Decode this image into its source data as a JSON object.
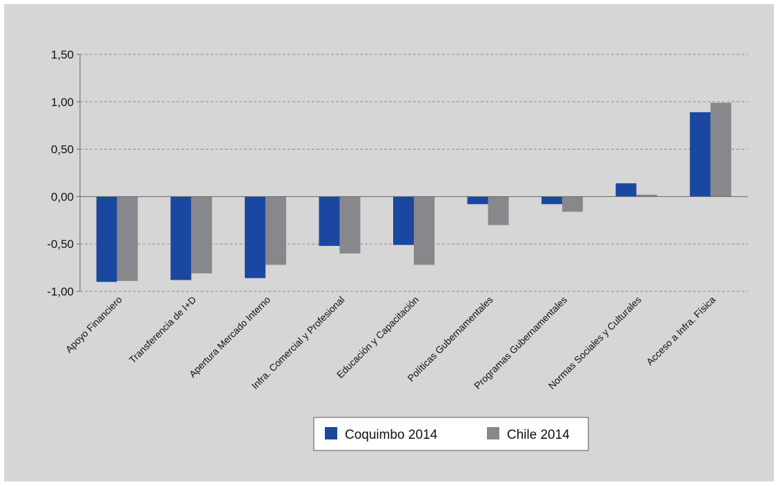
{
  "chart_data": {
    "type": "bar",
    "categories": [
      "Apoyo Financiero",
      "Transferencia de I+D",
      "Apertura Mercado Interno",
      "Infra. Comercial y Profesional",
      "Educación y Capacitación",
      "Políticas Gubernamentales",
      "Programas Gubernamentales",
      "Normas Sociales y Culturales",
      "Acceso a Infra. Física"
    ],
    "series": [
      {
        "name": "Coquimbo 2014",
        "color": "#1a47a0",
        "values": [
          -0.9,
          -0.88,
          -0.86,
          -0.52,
          -0.51,
          -0.08,
          -0.08,
          0.14,
          0.89
        ]
      },
      {
        "name": "Chile 2014",
        "color": "#87888b",
        "values": [
          -0.89,
          -0.81,
          -0.72,
          -0.6,
          -0.72,
          -0.3,
          -0.16,
          0.02,
          0.99
        ]
      }
    ],
    "yticks": [
      "1,50",
      "1,00",
      "0,50",
      "0,00",
      "-0,50",
      "-1,00"
    ],
    "ytick_values": [
      1.5,
      1.0,
      0.5,
      0.0,
      -0.5,
      -1.0
    ],
    "ylim": [
      -1.0,
      1.5
    ],
    "title": "",
    "xlabel": "",
    "ylabel": "",
    "grid": true,
    "legend_position": "bottom"
  }
}
